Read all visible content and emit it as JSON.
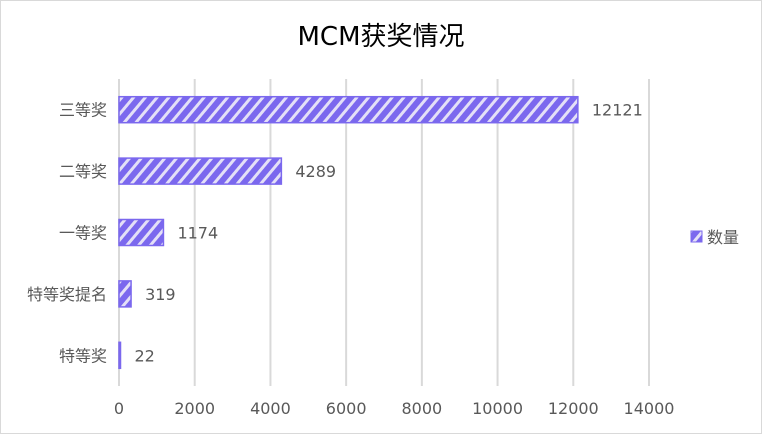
{
  "chart_data": {
    "type": "bar",
    "orientation": "horizontal",
    "title": "MCM获奖情况",
    "categories": [
      "三等奖",
      "二等奖",
      "一等奖",
      "特等奖提名",
      "特等奖"
    ],
    "series": [
      {
        "name": "数量",
        "values": [
          12121,
          4289,
          1174,
          319,
          22
        ]
      }
    ],
    "xlim": [
      0,
      14000
    ],
    "xticks": [
      0,
      2000,
      4000,
      6000,
      8000,
      10000,
      12000,
      14000
    ],
    "grid": true,
    "legend": "right",
    "data_labels": true,
    "colors": {
      "bar": "#7b68ee",
      "stripe": "#e4e0f7",
      "grid": "#d9d9d9",
      "text": "#595959"
    }
  }
}
